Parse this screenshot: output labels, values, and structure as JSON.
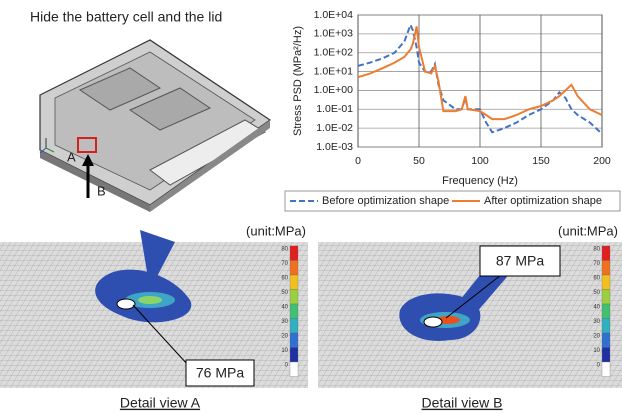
{
  "title": "Hide the battery cell and the lid",
  "overview_labels": {
    "a": "A",
    "b": "B"
  },
  "chart_data": {
    "type": "line",
    "log_y": true,
    "grid": true,
    "xlabel": "Frequency (Hz)",
    "ylabel": "Stress PSD (MPa²/Hz)",
    "x": [
      0,
      10,
      20,
      30,
      38,
      43,
      45,
      48,
      50,
      55,
      60,
      63,
      66,
      70,
      80,
      85,
      88,
      90,
      100,
      105,
      110,
      120,
      130,
      140,
      150,
      160,
      165,
      170,
      175,
      180,
      190,
      200
    ],
    "series": [
      {
        "name": "Before optimization shape",
        "color": "#4472c4",
        "dashed": true,
        "values": [
          20,
          30,
          50,
          100,
          400,
          3000,
          1500,
          200,
          30,
          10,
          10,
          25,
          2,
          0.3,
          0.1,
          0.1,
          0.4,
          0.1,
          0.1,
          0.02,
          0.006,
          0.01,
          0.02,
          0.05,
          0.1,
          0.3,
          0.8,
          0.4,
          0.1,
          0.05,
          0.02,
          0.005
        ]
      },
      {
        "name": "After optimization shape",
        "color": "#ed7d31",
        "dashed": false,
        "values": [
          5,
          8,
          15,
          30,
          60,
          150,
          300,
          2500,
          200,
          10,
          8,
          20,
          3,
          0.08,
          0.08,
          0.1,
          0.5,
          0.1,
          0.08,
          0.05,
          0.03,
          0.03,
          0.05,
          0.1,
          0.15,
          0.3,
          0.5,
          1,
          2,
          0.5,
          0.1,
          0.05
        ]
      }
    ],
    "xlim": [
      0,
      200
    ],
    "xticks": [
      0,
      50,
      100,
      150,
      200
    ],
    "ylim": [
      0.001,
      10000
    ],
    "yticks": [
      {
        "value": 10000,
        "label": "1.0E+04"
      },
      {
        "value": 1000,
        "label": "1.0E+03"
      },
      {
        "value": 100,
        "label": "1.0E+02"
      },
      {
        "value": 10,
        "label": "1.0E+01"
      },
      {
        "value": 1,
        "label": "1.0E+00"
      },
      {
        "value": 0.1,
        "label": "1.0E-01"
      },
      {
        "value": 0.01,
        "label": "1.0E-02"
      },
      {
        "value": 0.001,
        "label": "1.0E-03"
      }
    ]
  },
  "colorbar_labels": [
    "80",
    "70",
    "60",
    "50",
    "40",
    "30",
    "20",
    "10",
    "0"
  ],
  "detail_views": [
    {
      "unit": "(unit:MPa)",
      "callout": "76 MPa",
      "caption": "Detail view A"
    },
    {
      "unit": "(unit:MPa)",
      "callout": "87 MPa",
      "caption": "Detail view B"
    }
  ]
}
